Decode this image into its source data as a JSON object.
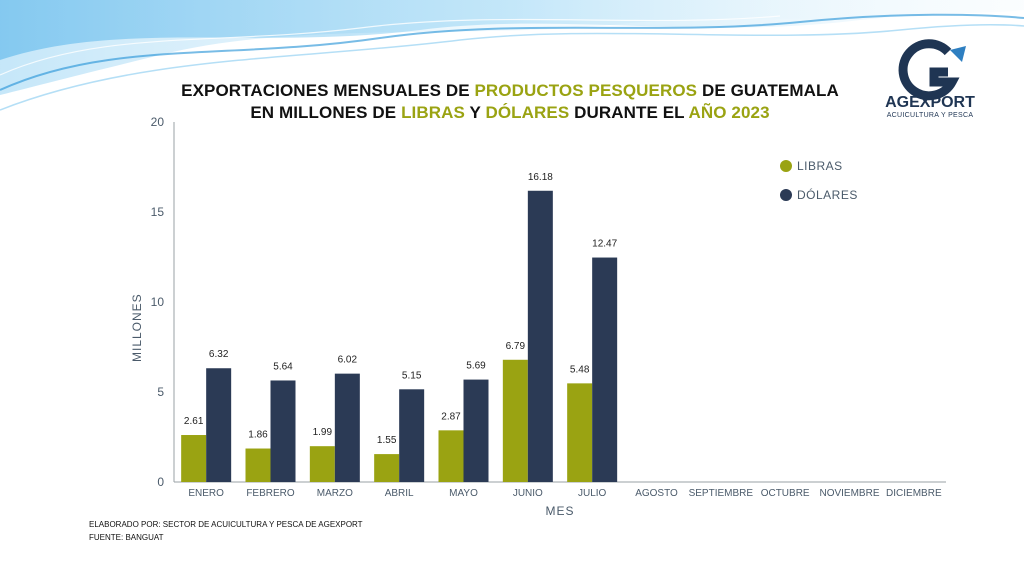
{
  "title": {
    "line1": [
      {
        "text": "EXPORTACIONES MENSUALES DE ",
        "highlight": false
      },
      {
        "text": "PRODUCTOS PESQUEROS",
        "highlight": true
      },
      {
        "text": " DE GUATEMALA",
        "highlight": false
      }
    ],
    "line2": [
      {
        "text": "EN MILLONES DE ",
        "highlight": false
      },
      {
        "text": "LIBRAS",
        "highlight": true
      },
      {
        "text": " Y ",
        "highlight": false
      },
      {
        "text": "DÓLARES",
        "highlight": true
      },
      {
        "text": " DURANTE EL ",
        "highlight": false
      },
      {
        "text": "AÑO 2023",
        "highlight": true
      }
    ]
  },
  "logo": {
    "name": "AGEXPORT",
    "subtitle": "ACUICULTURA Y PESCA"
  },
  "footer": {
    "elaborated_by": "ELABORADO POR: SECTOR DE ACUICULTURA Y PESCA DE AGEXPORT",
    "source": "FUENTE:  BANGUAT"
  },
  "colors": {
    "libras": "#9aa312",
    "dolares": "#2b3a55",
    "highlight": "#9aa312",
    "axis": "#4a5a6a"
  },
  "chart_data": {
    "type": "bar",
    "xlabel": "MES",
    "ylabel": "MILLONES",
    "ylim": [
      0,
      20
    ],
    "yticks": [
      0,
      5,
      10,
      15,
      20
    ],
    "categories": [
      "ENERO",
      "FEBRERO",
      "MARZO",
      "ABRIL",
      "MAYO",
      "JUNIO",
      "JULIO",
      "AGOSTO",
      "SEPTIEMBRE",
      "OCTUBRE",
      "NOVIEMBRE",
      "DICIEMBRE"
    ],
    "series": [
      {
        "name": "LIBRAS",
        "color": "#9aa312",
        "values": [
          2.61,
          1.86,
          1.99,
          1.55,
          2.87,
          6.79,
          5.48,
          null,
          null,
          null,
          null,
          null
        ],
        "labels": [
          "2.61",
          "1.86",
          "1.99",
          "1.55",
          "2.87",
          "6.79",
          "5.48",
          null,
          null,
          null,
          null,
          null
        ]
      },
      {
        "name": "DÓLARES",
        "color": "#2b3a55",
        "values": [
          6.32,
          5.64,
          6.02,
          5.15,
          5.69,
          16.18,
          12.47,
          null,
          null,
          null,
          null,
          null
        ],
        "labels": [
          "6.32",
          "5.64",
          "6.02",
          "5.15",
          "5.69",
          "16.18",
          "12.47",
          null,
          null,
          null,
          null,
          null
        ]
      }
    ],
    "legend_position": "top-right",
    "grid": false
  }
}
